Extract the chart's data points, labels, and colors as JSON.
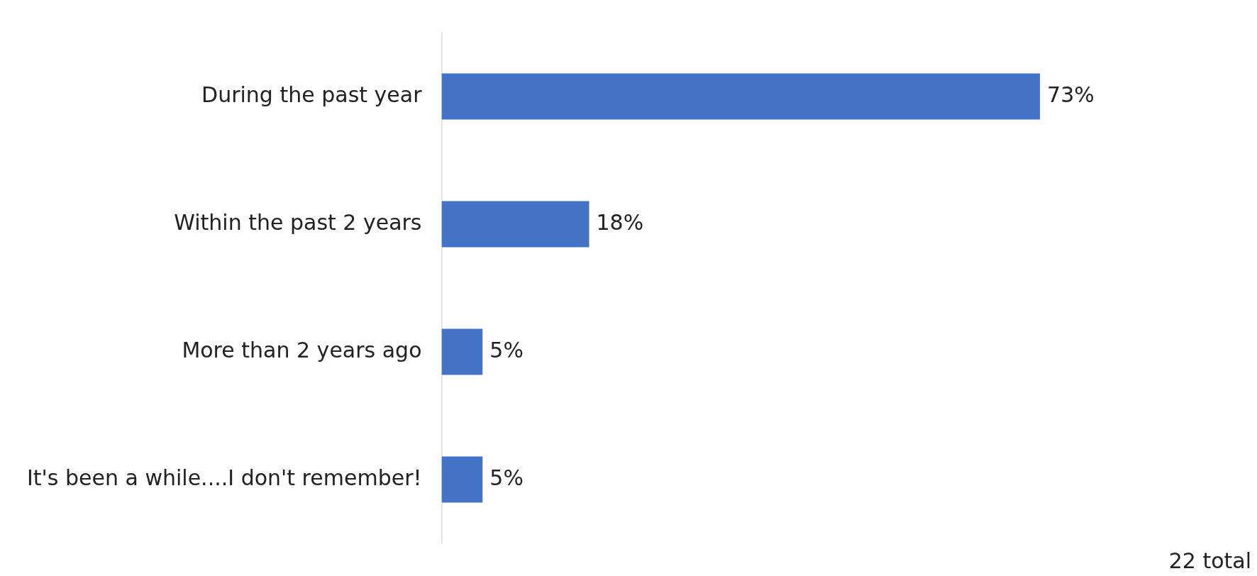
{
  "chart_data": {
    "type": "bar",
    "orientation": "horizontal",
    "categories": [
      "During the past year",
      "Within the past 2 years",
      "More than 2 years ago",
      "It's been a while....I don't remember!"
    ],
    "values": [
      73,
      18,
      5,
      5
    ],
    "color": "#4472c4",
    "value_labels": [
      "73%",
      "18%",
      "5%",
      "5%"
    ],
    "annotations": [
      "22 total"
    ],
    "tick_labels": "y",
    "grid": false,
    "legend": false
  }
}
